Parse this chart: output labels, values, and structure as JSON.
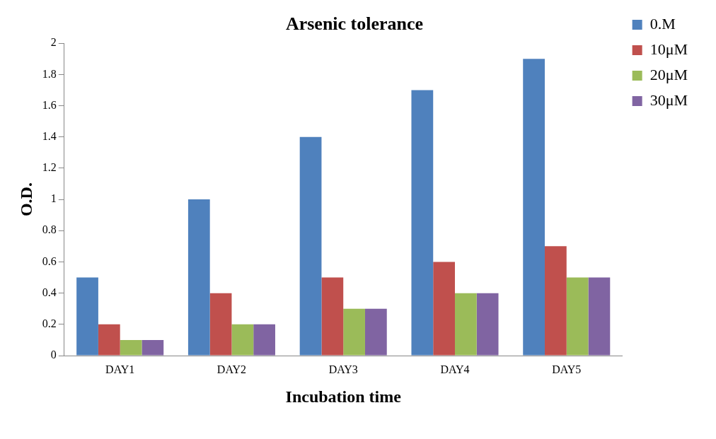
{
  "chart_data": {
    "type": "bar",
    "title": "Arsenic tolerance",
    "xlabel": "Incubation time",
    "ylabel": "O.D.",
    "categories": [
      "DAY1",
      "DAY2",
      "DAY3",
      "DAY4",
      "DAY5"
    ],
    "series": [
      {
        "name": "0.M",
        "color": "#4f81bd",
        "values": [
          0.5,
          1,
          1.4,
          1.7,
          1.9
        ]
      },
      {
        "name": "10μM",
        "color": "#c0504d",
        "values": [
          0.2,
          0.4,
          0.5,
          0.6,
          0.7
        ]
      },
      {
        "name": "20μM",
        "color": "#9bbb59",
        "values": [
          0.1,
          0.2,
          0.3,
          0.4,
          0.5
        ]
      },
      {
        "name": "30μM",
        "color": "#8064a2",
        "values": [
          0.1,
          0.2,
          0.3,
          0.4,
          0.5
        ]
      }
    ],
    "ylim": [
      0,
      2
    ],
    "yticks": [
      0,
      0.2,
      0.4,
      0.6,
      0.8,
      1,
      1.2,
      1.4,
      1.6,
      1.8,
      2
    ],
    "grid": false,
    "legend": "right"
  }
}
